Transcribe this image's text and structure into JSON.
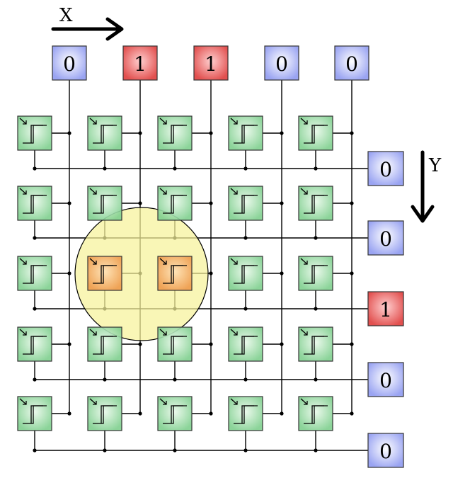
{
  "labels": {
    "x_axis": "X",
    "y_axis": "Y"
  },
  "column_outputs": [
    "0",
    "1",
    "1",
    "0",
    "0"
  ],
  "row_outputs": [
    "0",
    "0",
    "1",
    "0",
    "0"
  ],
  "activated_cells": [
    [
      2,
      1
    ],
    [
      2,
      2
    ]
  ],
  "colors": {
    "low_fill": "#aab2f6",
    "high_fill": "#e75a5a",
    "cell_fill": "#8fd49a",
    "cell_active_fill": "#f0a35a",
    "highlight_fill": "#f7f29a",
    "line": "#000000"
  },
  "icons": {
    "cell": "comparator-step-icon",
    "axis_arrow": "arrow-icon"
  }
}
